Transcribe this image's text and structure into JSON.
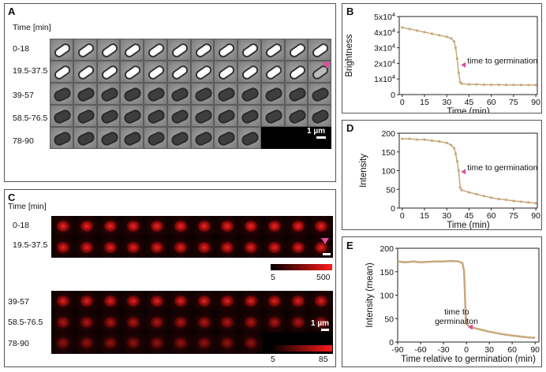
{
  "panels": {
    "a": {
      "label": "A",
      "time_header": "Time [min]",
      "rows": [
        "0-18",
        "19.5-37.5",
        "39-57",
        "58.5-76.5",
        "78-90"
      ],
      "scale_label": "1 µm"
    },
    "c": {
      "label": "C",
      "time_header": "Time [min]",
      "rows_top": [
        "0-18",
        "19.5-37.5"
      ],
      "rows_bottom": [
        "39-57",
        "58.5-76.5",
        "78-90"
      ],
      "scale_label": "1 µm",
      "colorbar_top": {
        "min": "5",
        "max": "500"
      },
      "colorbar_bottom": {
        "min": "5",
        "max": "85"
      }
    },
    "b": {
      "label": "B"
    },
    "d": {
      "label": "D"
    },
    "e": {
      "label": "E"
    }
  },
  "colors": {
    "line": "#c8a87a",
    "marker": "#e24aa0",
    "red": "#ff1a1a"
  },
  "chart_data": [
    {
      "id": "B",
      "type": "line",
      "xlabel": "Time (min)",
      "ylabel": "Brightness",
      "xlim": [
        -2,
        91
      ],
      "ylim": [
        0,
        50000
      ],
      "xticks": [
        0,
        15,
        30,
        45,
        60,
        75,
        90
      ],
      "yticks": [
        {
          "v": 0,
          "m": "0",
          "e": ""
        },
        {
          "v": 10000,
          "m": "1x10",
          "e": "4"
        },
        {
          "v": 20000,
          "m": "2x10",
          "e": "4"
        },
        {
          "v": 30000,
          "m": "3x10",
          "e": "4"
        },
        {
          "v": 40000,
          "m": "4x10",
          "e": "4"
        },
        {
          "v": 50000,
          "m": "5x10",
          "e": "4"
        }
      ],
      "x": [
        0,
        5,
        10,
        15,
        20,
        25,
        30,
        33,
        35,
        36,
        37,
        38,
        39,
        40,
        45,
        50,
        55,
        60,
        65,
        70,
        75,
        80,
        85,
        90
      ],
      "y": [
        43000,
        42000,
        41000,
        40000,
        39000,
        38000,
        37000,
        36000,
        34000,
        30000,
        23000,
        14000,
        8000,
        7000,
        6500,
        6500,
        6300,
        6300,
        6300,
        6200,
        6200,
        6200,
        6100,
        6100
      ],
      "annotation": {
        "text": "time to germination",
        "x": 38.5,
        "y": 19000
      }
    },
    {
      "id": "D",
      "type": "line",
      "xlabel": "Time (min)",
      "ylabel": "Intensity",
      "xlim": [
        -2,
        91
      ],
      "ylim": [
        0,
        200
      ],
      "xticks": [
        0,
        15,
        30,
        45,
        60,
        75,
        90
      ],
      "yticks": [
        {
          "v": 0
        },
        {
          "v": 50
        },
        {
          "v": 100
        },
        {
          "v": 150
        },
        {
          "v": 200
        }
      ],
      "x": [
        0,
        5,
        10,
        15,
        20,
        25,
        30,
        33,
        35,
        36,
        37,
        38,
        39,
        40,
        45,
        50,
        55,
        60,
        65,
        70,
        75,
        80,
        85,
        90
      ],
      "y": [
        185,
        185,
        183,
        183,
        180,
        178,
        174,
        168,
        160,
        145,
        125,
        100,
        55,
        48,
        42,
        37,
        32,
        28,
        24,
        22,
        19,
        17,
        15,
        13
      ],
      "annotation": {
        "text": "time to germination",
        "x": 38.5,
        "y": 97
      }
    },
    {
      "id": "E",
      "type": "line",
      "xlabel": "Time relative to germination (min)",
      "ylabel": "Intensity (mean)",
      "xlim": [
        -90,
        95
      ],
      "ylim": [
        0,
        200
      ],
      "xticks": [
        -90,
        -60,
        -30,
        0,
        30,
        60,
        90
      ],
      "yticks": [
        {
          "v": 0
        },
        {
          "v": 50
        },
        {
          "v": 100
        },
        {
          "v": 150
        },
        {
          "v": 200
        }
      ],
      "x": [
        -90,
        -80,
        -70,
        -60,
        -50,
        -40,
        -30,
        -20,
        -10,
        -5,
        -3,
        -2,
        -1,
        0,
        5,
        10,
        20,
        30,
        40,
        50,
        60,
        70,
        80,
        90
      ],
      "y": [
        172,
        170,
        172,
        170,
        171,
        172,
        172,
        173,
        172,
        168,
        150,
        110,
        60,
        38,
        33,
        30,
        26,
        22,
        19,
        16,
        14,
        12,
        10,
        9
      ],
      "annotation": {
        "text_line1": "time to",
        "text_line2": "germinaiton",
        "x": 0,
        "y": 32
      }
    }
  ]
}
